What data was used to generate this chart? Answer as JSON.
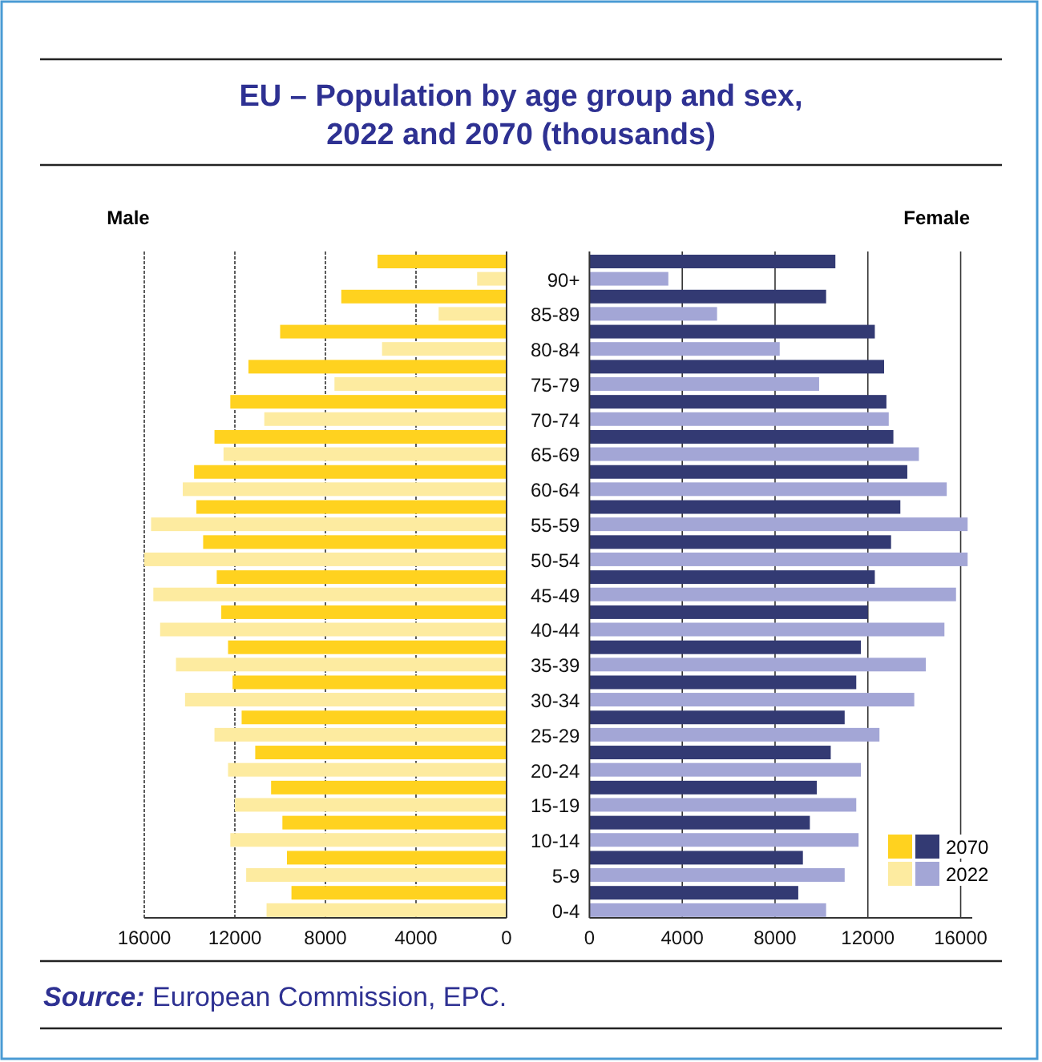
{
  "chart_data": [
    {
      "type": "bar",
      "orientation": "horizontal",
      "title": "EU – Population by age group and sex, 2022 and 2070 (thousands)",
      "subtitle": "Male",
      "categories": [
        null,
        null,
        null,
        null,
        null,
        null,
        null,
        null,
        null,
        null,
        null,
        null,
        null,
        null,
        null,
        null,
        null,
        null,
        null
      ],
      "series": [
        {
          "color": "#ffd21f",
          "values": [
            5700,
            7300,
            10000,
            11400,
            12200,
            12900,
            13800,
            13700,
            13400,
            12800,
            12600,
            12300,
            12100,
            11700,
            11100,
            10400,
            9900,
            9700,
            9500
          ]
        },
        {
          "color": "#fdeba0",
          "values": [
            1300,
            3000,
            5500,
            7600,
            10700,
            12500,
            14300,
            15700,
            16000,
            15600,
            15300,
            14600,
            14200,
            12900,
            12300,
            12000,
            12200,
            11500,
            10600
          ]
        }
      ],
      "xlim": [
        16000,
        0
      ],
      "xticks": [
        16000,
        12000,
        8000,
        4000,
        0
      ],
      "grid": "x",
      "tick_labels": "x"
    },
    {
      "type": "bar",
      "orientation": "horizontal",
      "subtitle": "Female",
      "annotations": [
        "Source: European Commission, EPC."
      ],
      "categories": [
        "90+",
        "85-89",
        "80-84",
        "75-79",
        "70-74",
        "65-69",
        "60-64",
        "55-59",
        "50-54",
        "45-49",
        "40-44",
        "35-39",
        "30-34",
        "25-29",
        "20-24",
        "15-19",
        "10-14",
        "5-9",
        "0-4"
      ],
      "series": [
        {
          "name": "2070",
          "color": "#333a73",
          "values": [
            10600,
            10200,
            12300,
            12700,
            12800,
            13100,
            13700,
            13400,
            13000,
            12300,
            12000,
            11700,
            11500,
            11000,
            10400,
            9800,
            9500,
            9200,
            9000
          ]
        },
        {
          "name": "2022",
          "color": "#a3a6d6",
          "values": [
            3400,
            5500,
            8200,
            9900,
            12900,
            14200,
            15400,
            16300,
            16300,
            15800,
            15300,
            14500,
            14000,
            12500,
            11700,
            11500,
            11600,
            11000,
            10200
          ]
        }
      ],
      "xlim": [
        0,
        16500
      ],
      "xticks": [
        0,
        4000,
        8000,
        12000,
        16000
      ],
      "grid": "x",
      "legend": "bottom right"
    }
  ]
}
